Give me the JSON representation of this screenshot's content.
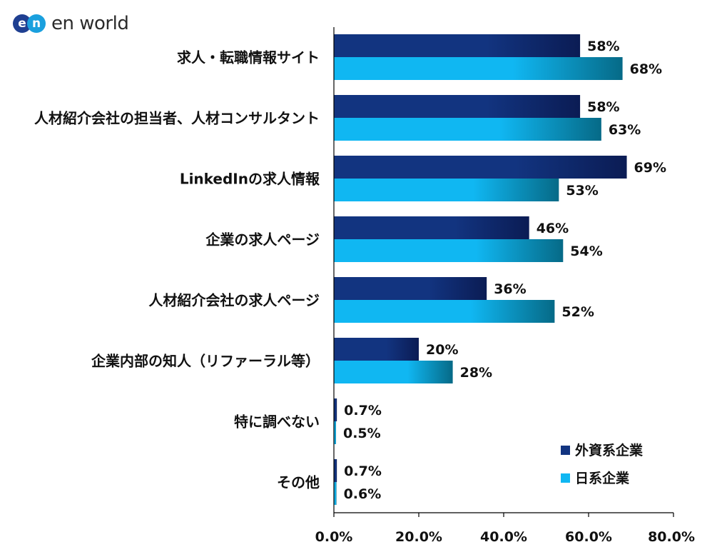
{
  "logo": {
    "text": "en world"
  },
  "colors": {
    "foreign_start": "#123480",
    "foreign_end": "#0b1c54",
    "japan_start": "#10b7f2",
    "japan_end": "#066a87",
    "axis": "#000000"
  },
  "chart_data": {
    "type": "bar",
    "orientation": "horizontal",
    "categories": [
      "求人・転職情報サイト",
      "人材紹介会社の担当者、人材コンサルタント",
      "LinkedInの求人情報",
      "企業の求人ページ",
      "人材紹介会社の求人ページ",
      "企業内部の知人（リファーラル等）",
      "特に調べない",
      "その他"
    ],
    "series": [
      {
        "name": "外資系企業",
        "values": [
          58,
          58,
          69,
          46,
          36,
          20,
          0.7,
          0.7
        ],
        "labels": [
          "58%",
          "58%",
          "69%",
          "46%",
          "36%",
          "20%",
          "0.7%",
          "0.7%"
        ]
      },
      {
        "name": "日系企業",
        "values": [
          68,
          63,
          53,
          54,
          52,
          28,
          0.5,
          0.6
        ],
        "labels": [
          "68%",
          "63%",
          "53%",
          "54%",
          "52%",
          "28%",
          "0.5%",
          "0.6%"
        ]
      }
    ],
    "xlim": [
      0,
      80
    ],
    "xticks": [
      "0.0%",
      "20.0%",
      "40.0%",
      "60.0%",
      "80.0%"
    ],
    "grid": false,
    "legend_position": "bottom-right"
  }
}
